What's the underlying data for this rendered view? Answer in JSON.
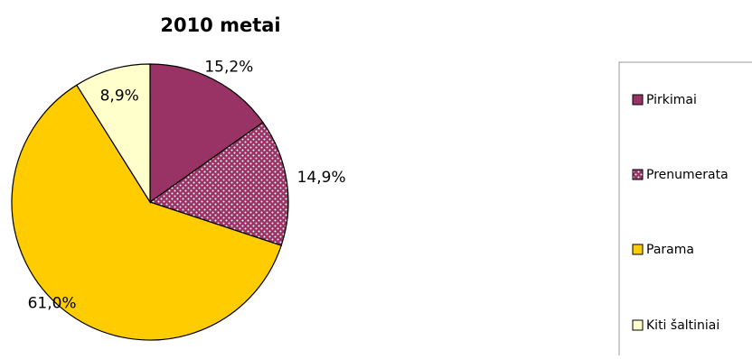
{
  "chart_data": {
    "type": "pie",
    "title": "2010 metai",
    "categories": [
      "Pirkimai",
      "Prenumerata",
      "Parama",
      "Kiti šaltiniai"
    ],
    "values": [
      15.2,
      14.9,
      61.0,
      8.9
    ],
    "data_labels": [
      "15,2%",
      "14,9%",
      "61,0%",
      "8,9%"
    ],
    "colors": [
      "#993366",
      "#993366",
      "#FFCC00",
      "#FFFFCC"
    ],
    "fill_patterns": [
      "solid",
      "dotted",
      "solid",
      "solid"
    ],
    "legend_position": "right",
    "start_angle": "12 o'clock, clockwise"
  }
}
